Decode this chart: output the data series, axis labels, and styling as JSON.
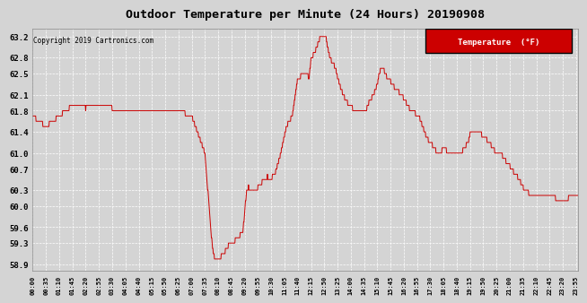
{
  "title": "Outdoor Temperature per Minute (24 Hours) 20190908",
  "copyright": "Copyright 2019 Cartronics.com",
  "legend_label": "Temperature  (°F)",
  "background_color": "#d4d4d4",
  "line_color": "#cc0000",
  "legend_bg": "#cc0000",
  "legend_text_color": "#ffffff",
  "yticks": [
    58.9,
    59.3,
    59.6,
    60.0,
    60.3,
    60.7,
    61.0,
    61.4,
    61.8,
    62.1,
    62.5,
    62.8,
    63.2
  ],
  "ylim": [
    58.78,
    63.35
  ],
  "x_tick_interval": 35,
  "total_minutes": 1440
}
